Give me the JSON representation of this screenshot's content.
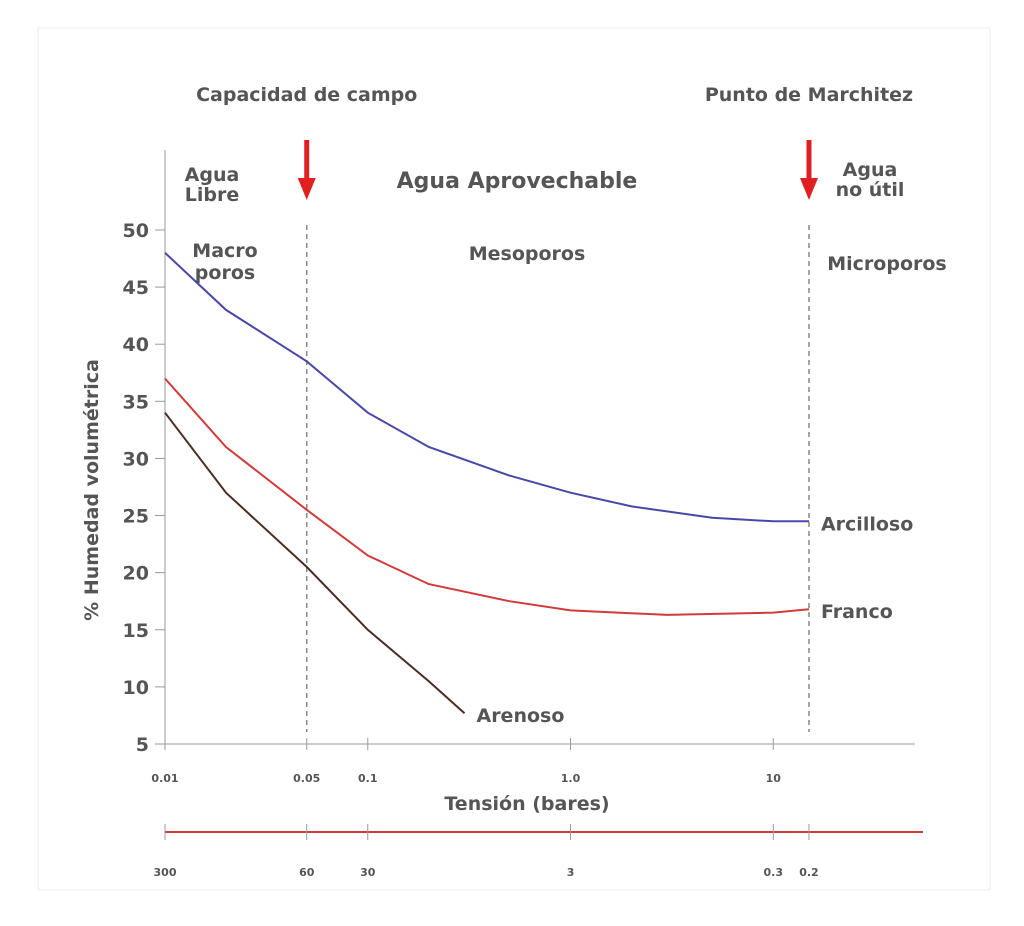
{
  "chart_data": {
    "type": "line",
    "y_label": "% Humedad volumétrica",
    "x_label": "Tensión (bares)",
    "log_x": true,
    "xlim": [
      0.01,
      50
    ],
    "xticks": [
      {
        "value": 0.01,
        "label": "0.01"
      },
      {
        "value": 0.05,
        "label": "0.05"
      },
      {
        "value": 0.1,
        "label": "0.1"
      },
      {
        "value": 1,
        "label": "1.0"
      },
      10
    ],
    "ylim": [
      5,
      57
    ],
    "yticks": [
      5,
      10,
      15,
      20,
      25,
      30,
      35,
      40,
      45,
      50
    ],
    "x2lim": [
      300,
      0.06
    ],
    "x2ticks": [
      300,
      60,
      30,
      3,
      0.3,
      0.2
    ],
    "x2_color": "#d33a3a",
    "annotations": [
      {
        "x": 0.05,
        "label": "Capacidad de campo"
      },
      {
        "x": 15,
        "label": "Punto de Marchitez"
      }
    ],
    "arrow_color": "#e02020",
    "regions": {
      "agua_libre": [
        "Agua",
        "Libre"
      ],
      "agua_aprovechable": "Agua Aprovechable",
      "agua_no_util": [
        "Agua",
        "no útil"
      ],
      "macroporos": [
        "Macro",
        "poros"
      ],
      "mesoporos": "Mesoporos",
      "microporos": "Microporos"
    },
    "series": [
      {
        "name": "Arcilloso",
        "color": "#4848a8",
        "x": [
          0.01,
          0.02,
          0.05,
          0.1,
          0.2,
          0.5,
          1,
          2,
          5,
          10,
          15
        ],
        "values": [
          48,
          43,
          38.5,
          34,
          31,
          28.5,
          27,
          25.8,
          24.8,
          24.5,
          24.5
        ]
      },
      {
        "name": "Franco",
        "color": "#d33a3a",
        "x": [
          0.01,
          0.02,
          0.05,
          0.1,
          0.2,
          0.5,
          1,
          3,
          10,
          15
        ],
        "values": [
          37,
          31,
          25.5,
          21.5,
          19,
          17.5,
          16.7,
          16.3,
          16.5,
          16.8
        ]
      },
      {
        "name": "Arenoso",
        "color": "#4a2e22",
        "x": [
          0.01,
          0.02,
          0.05,
          0.1,
          0.2,
          0.3
        ],
        "values": [
          34,
          27,
          20.5,
          15,
          10.5,
          7.7
        ]
      }
    ]
  }
}
